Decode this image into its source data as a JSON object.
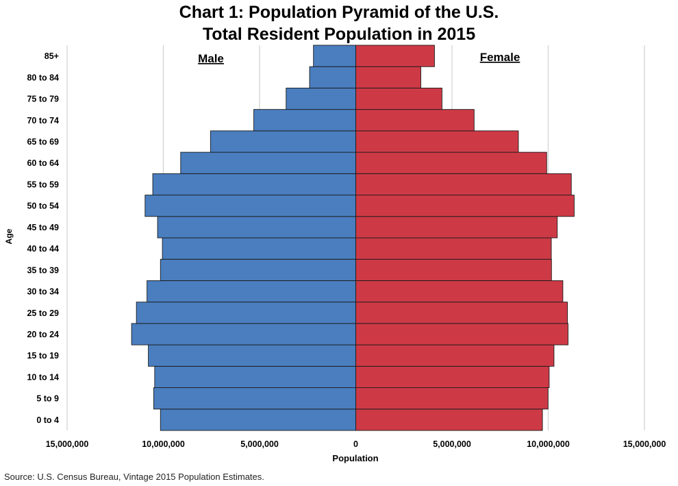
{
  "chart_data": {
    "type": "bar",
    "orientation": "horizontal",
    "layout": "population-pyramid",
    "title_line1": "Chart 1: Population Pyramid of the U.S.",
    "title_line2": "Total Resident Population in 2015",
    "xlabel": "Population",
    "ylabel": "Age",
    "xlim": [
      -15000000,
      15000000
    ],
    "x_ticks": [
      -15000000,
      -10000000,
      -5000000,
      0,
      5000000,
      10000000,
      15000000
    ],
    "x_tick_labels": [
      "15,000,000",
      "10,000,000",
      "5,000,000",
      "0",
      "5,000,000",
      "10,000,000",
      "15,000,000"
    ],
    "grid": "vertical",
    "categories": [
      "0 to 4",
      "5 to 9",
      "10 to 14",
      "15 to 19",
      "20 to 24",
      "25 to 29",
      "30 to 34",
      "35 to 39",
      "40 to 44",
      "45 to 49",
      "50 to 54",
      "55 to 59",
      "60 to 64",
      "65 to 69",
      "70 to 74",
      "75 to 79",
      "80 to 84",
      "85+"
    ],
    "series": [
      {
        "name": "Male",
        "color": "#4a7ebf",
        "values": [
          10150000,
          10500000,
          10450000,
          10780000,
          11650000,
          11400000,
          10850000,
          10150000,
          10050000,
          10300000,
          10950000,
          10550000,
          9100000,
          7550000,
          5300000,
          3620000,
          2400000,
          2200000
        ]
      },
      {
        "name": "Female",
        "color": "#cd3a46",
        "values": [
          9700000,
          9990000,
          10050000,
          10300000,
          11030000,
          11000000,
          10760000,
          10170000,
          10160000,
          10470000,
          11350000,
          11200000,
          9920000,
          8450000,
          6150000,
          4480000,
          3380000,
          4090000
        ]
      }
    ],
    "source": "Source: U.S. Census Bureau, Vintage 2015 Population Estimates."
  }
}
